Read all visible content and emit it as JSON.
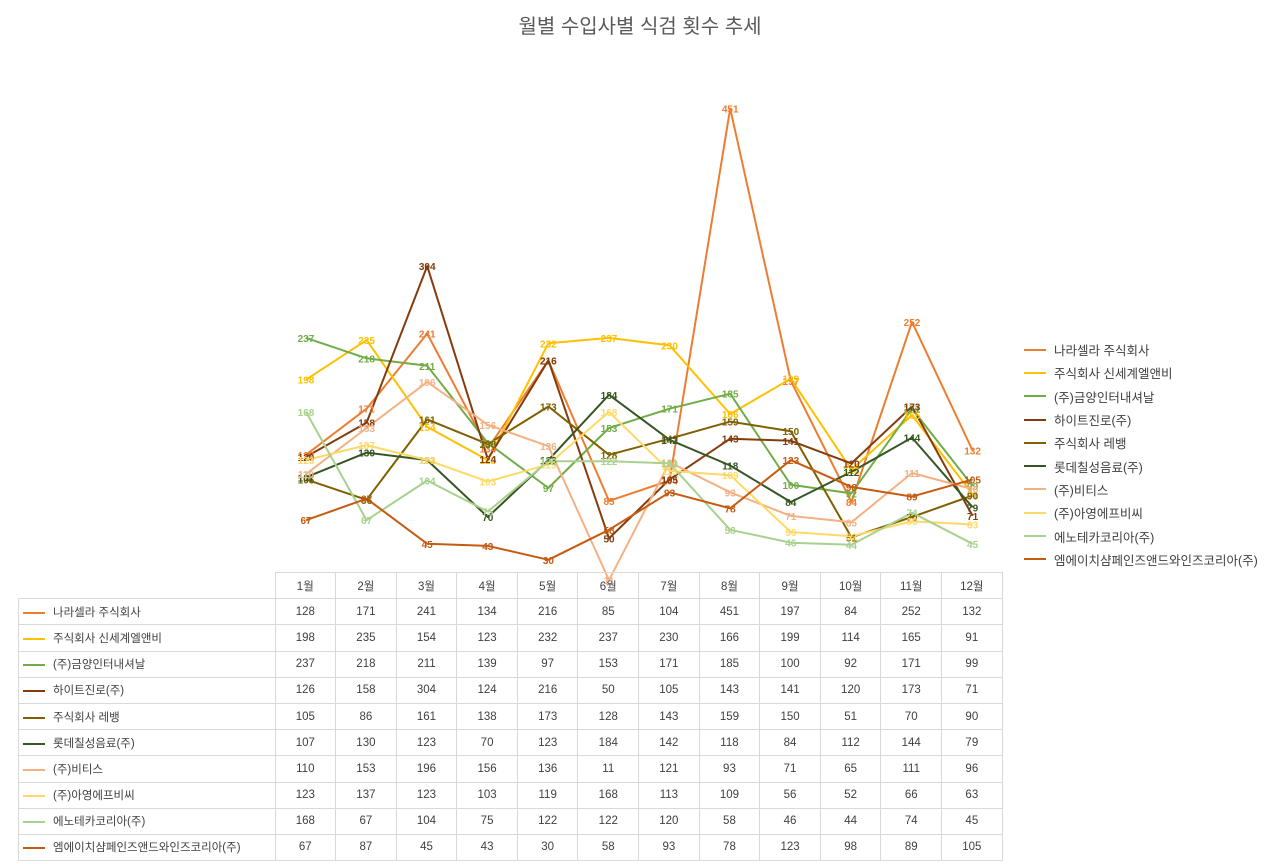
{
  "chart_data": {
    "type": "line",
    "title": "월별 수입사별 식검 횟수 추세",
    "categories": [
      "1월",
      "2월",
      "3월",
      "4월",
      "5월",
      "6월",
      "7월",
      "8월",
      "9월",
      "10월",
      "11월",
      "12월"
    ],
    "ylim": [
      0,
      500
    ],
    "grid": false,
    "legend_position": "right",
    "data_table": true,
    "series": [
      {
        "name": "나라셀라 주식회사",
        "color": "#ED7D31",
        "values": [
          128,
          171,
          241,
          134,
          216,
          85,
          104,
          451,
          197,
          84,
          252,
          132
        ]
      },
      {
        "name": "주식회사 신세계엘앤비",
        "color": "#FFC000",
        "values": [
          198,
          235,
          154,
          123,
          232,
          237,
          230,
          166,
          199,
          114,
          165,
          91
        ]
      },
      {
        "name": "(주)금양인터내셔날",
        "color": "#70AD47",
        "values": [
          237,
          218,
          211,
          139,
          97,
          153,
          171,
          185,
          100,
          92,
          171,
          99
        ]
      },
      {
        "name": "하이트진로(주)",
        "color": "#843C0C",
        "values": [
          126,
          158,
          304,
          124,
          216,
          50,
          105,
          143,
          141,
          120,
          173,
          71
        ]
      },
      {
        "name": "주식회사 레뱅",
        "color": "#806000",
        "values": [
          105,
          86,
          161,
          138,
          173,
          128,
          143,
          159,
          150,
          51,
          70,
          90
        ]
      },
      {
        "name": "롯데칠성음료(주)",
        "color": "#375623",
        "values": [
          107,
          130,
          123,
          70,
          123,
          184,
          142,
          118,
          84,
          112,
          144,
          79
        ]
      },
      {
        "name": "(주)비티스",
        "color": "#F4B183",
        "values": [
          110,
          153,
          196,
          156,
          136,
          11,
          121,
          93,
          71,
          65,
          111,
          96
        ]
      },
      {
        "name": "(주)아영에프비씨",
        "color": "#FFD966",
        "values": [
          123,
          137,
          123,
          103,
          119,
          168,
          113,
          109,
          56,
          52,
          66,
          63
        ]
      },
      {
        "name": "에노테카코리아(주)",
        "color": "#A9D18E",
        "values": [
          168,
          67,
          104,
          75,
          122,
          122,
          120,
          58,
          46,
          44,
          74,
          45
        ]
      },
      {
        "name": "엠에이치샴페인즈앤드와인즈코리아(주)",
        "color": "#C55A11",
        "values": [
          67,
          87,
          45,
          43,
          30,
          58,
          93,
          78,
          123,
          98,
          89,
          105
        ]
      }
    ]
  }
}
